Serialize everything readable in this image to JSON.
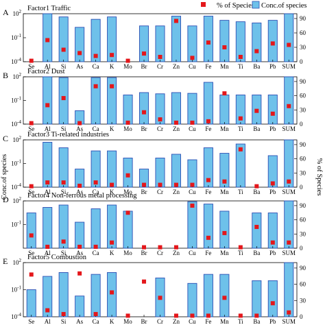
{
  "legend": {
    "pct_label": "% of Species",
    "conc_label": "Conc.of species"
  },
  "y_left_label": "Conc.of species",
  "y_right_label": "% of Species",
  "colors": {
    "bar_fill": "#6ec1ea",
    "bar_edge": "#2d4fb4",
    "marker": "#e4171b"
  },
  "chart_data": [
    {
      "type": "bar",
      "letter": "A",
      "title": "Factor1  Traffic",
      "categories": [
        "Se",
        "Al",
        "Si",
        "As",
        "Ca",
        "K",
        "Mo",
        "Br",
        "Cr",
        "Zn",
        "Cu",
        "Fe",
        "Mn",
        "Ti",
        "Ba",
        "Pb",
        "SUM"
      ],
      "left_axis": {
        "scale": "log",
        "ylim": [
          0.0001,
          100
        ],
        "tick_labels": [
          "10^-4",
          "10^-1",
          "10^2"
        ]
      },
      "right_axis": {
        "ylim": [
          0,
          100
        ],
        "tick_labels": [
          "0",
          "30",
          "60",
          "90"
        ]
      },
      "series": [
        {
          "name": "Conc.of species",
          "kind": "bar",
          "values": [
            8e-05,
            200,
            40,
            2,
            20,
            40,
            8e-05,
            3,
            3,
            50,
            3,
            50,
            15,
            10,
            7,
            15,
            300
          ]
        },
        {
          "name": "% of Species",
          "kind": "marker",
          "values": [
            2,
            45,
            25,
            18,
            12,
            14,
            2,
            17,
            10,
            85,
            8,
            40,
            30,
            10,
            22,
            38,
            35
          ]
        }
      ]
    },
    {
      "type": "bar",
      "letter": "B",
      "title": "Factor2  Dust",
      "categories": [
        "Se",
        "Al",
        "Si",
        "As",
        "Ca",
        "K",
        "Mo",
        "Br",
        "Cr",
        "Zn",
        "Cu",
        "Fe",
        "Mn",
        "Ti",
        "Ba",
        "Pb",
        "SUM"
      ],
      "left_axis": {
        "scale": "log",
        "ylim": [
          0.0001,
          100
        ],
        "tick_labels": [
          "10^-4",
          "10^-1",
          "10^2"
        ]
      },
      "right_axis": {
        "ylim": [
          0,
          100
        ],
        "tick_labels": [
          "0",
          "30",
          "60",
          "90"
        ]
      },
      "series": [
        {
          "name": "Conc.of species",
          "kind": "bar",
          "values": [
            8e-05,
            150,
            80,
            0.005,
            80,
            80,
            0.5,
            1,
            0.7,
            1,
            0.8,
            20,
            0.5,
            0.5,
            0.5,
            0.5,
            300
          ]
        },
        {
          "name": "% of Species",
          "kind": "marker",
          "values": [
            2,
            40,
            55,
            2,
            80,
            80,
            3,
            25,
            10,
            3,
            3,
            6,
            65,
            12,
            28,
            22,
            38
          ]
        }
      ]
    },
    {
      "type": "bar",
      "letter": "C",
      "title": "Factor3  Ti-related industries",
      "categories": [
        "Se",
        "Al",
        "Si",
        "As",
        "Ca",
        "K",
        "Mo",
        "Br",
        "Cr",
        "Zn",
        "Cu",
        "Fe",
        "Mn",
        "Ti",
        "Ba",
        "Pb",
        "SUM"
      ],
      "left_axis": {
        "scale": "log",
        "ylim": [
          0.0001,
          100
        ],
        "tick_labels": [
          "10^-4",
          "10^-1",
          "10^2"
        ]
      },
      "right_axis": {
        "ylim": [
          0,
          100
        ],
        "tick_labels": [
          "0",
          "30",
          "60",
          "90"
        ]
      },
      "series": [
        {
          "name": "Conc.of species",
          "kind": "bar",
          "values": [
            8e-05,
            50,
            10,
            0.02,
            4,
            4,
            0.5,
            0.02,
            0.5,
            1.5,
            0.3,
            10,
            2,
            30,
            8e-05,
            1,
            100
          ]
        },
        {
          "name": "% of Species",
          "kind": "marker",
          "values": [
            2,
            10,
            10,
            3,
            10,
            5,
            25,
            5,
            5,
            5,
            5,
            15,
            12,
            80,
            2,
            8,
            12
          ]
        }
      ]
    },
    {
      "type": "bar",
      "letter": "D",
      "title": "Factor4  Non-ferrous metal processing",
      "categories": [
        "Se",
        "Al",
        "Si",
        "As",
        "Ca",
        "K",
        "Mo",
        "Br",
        "Cr",
        "Zn",
        "Cu",
        "Fe",
        "Mn",
        "Ti",
        "Ba",
        "Pb",
        "SUM"
      ],
      "left_axis": {
        "scale": "log",
        "ylim": [
          0.0001,
          100
        ],
        "tick_labels": [
          "10^-1",
          "10^2"
        ]
      },
      "right_axis": {
        "ylim": [
          0,
          100
        ],
        "tick_labels": [
          "0",
          "30",
          "60",
          "90"
        ]
      },
      "series": [
        {
          "name": "Conc.of species",
          "kind": "bar",
          "values": [
            3,
            15,
            30,
            0.2,
            10,
            30,
            5,
            8e-05,
            8e-05,
            8e-05,
            80,
            40,
            5,
            8e-05,
            3,
            3,
            150
          ]
        },
        {
          "name": "% of Species",
          "kind": "marker",
          "values": [
            27,
            3,
            14,
            3,
            3,
            12,
            75,
            2,
            2,
            2,
            90,
            22,
            32,
            2,
            45,
            12,
            12
          ]
        }
      ]
    },
    {
      "type": "bar",
      "letter": "E",
      "title": "Factor5  Combustion",
      "categories": [
        "Se",
        "Al",
        "Si",
        "As",
        "Ca",
        "K",
        "Mo",
        "Br",
        "Cr",
        "Zn",
        "Cu",
        "Fe",
        "Mn",
        "Ti",
        "Ba",
        "Pb",
        "SUM"
      ],
      "left_axis": {
        "scale": "log",
        "ylim": [
          0.0001,
          100
        ],
        "tick_labels": [
          "10^-4",
          "10^-1",
          "10^2"
        ]
      },
      "right_axis": {
        "ylim": [
          0,
          100
        ],
        "tick_labels": [
          "0",
          "30",
          "60",
          "90"
        ]
      },
      "series": [
        {
          "name": "Conc.of species",
          "kind": "bar",
          "values": [
            0.1,
            3,
            8,
            0.02,
            5,
            8,
            8e-05,
            8e-05,
            2,
            8e-05,
            0.5,
            5,
            5,
            8e-05,
            1,
            1,
            100
          ]
        },
        {
          "name": "% of Species",
          "kind": "marker",
          "values": [
            78,
            12,
            5,
            80,
            5,
            45,
            2,
            65,
            35,
            2,
            2,
            2,
            35,
            2,
            2,
            25,
            8
          ]
        }
      ]
    }
  ]
}
